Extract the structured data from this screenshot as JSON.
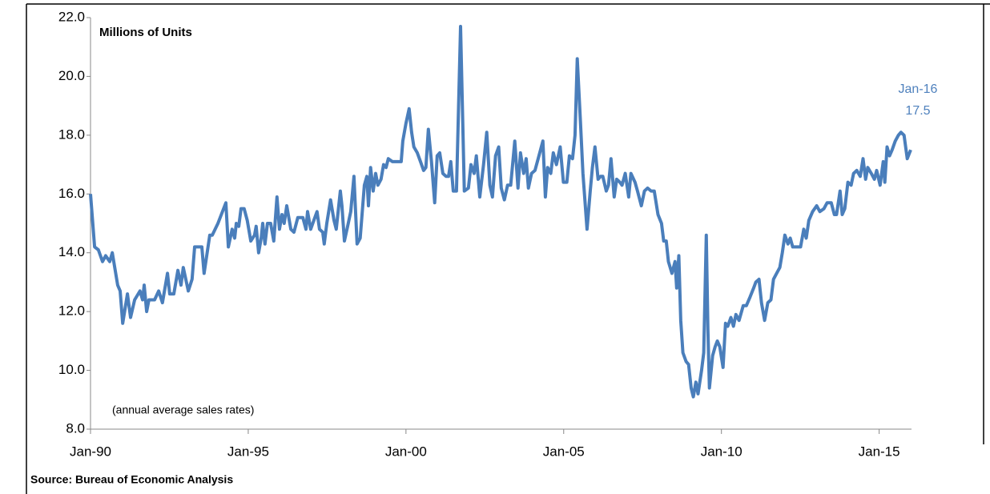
{
  "chart_data": {
    "type": "line",
    "axis_title": "Millions of Units",
    "note": "(annual average sales rates)",
    "source": "Source: Bureau of Economic Analysis",
    "annotations": [
      "Jan-16",
      "17.5"
    ],
    "color": "#4a7ebb",
    "x": [
      1990.0,
      1990.13,
      1990.25,
      1990.38,
      1990.48,
      1990.61,
      1990.69,
      1990.86,
      1990.94,
      1991.02,
      1991.17,
      1991.27,
      1991.4,
      1991.57,
      1991.65,
      1991.7,
      1991.78,
      1991.85,
      1992.03,
      1992.16,
      1992.28,
      1992.44,
      1992.51,
      1992.64,
      1992.77,
      1992.87,
      1992.94,
      1993.1,
      1993.22,
      1993.3,
      1993.53,
      1993.6,
      1993.78,
      1993.86,
      1994.04,
      1994.11,
      1994.29,
      1994.37,
      1994.49,
      1994.57,
      1994.62,
      1994.7,
      1994.77,
      1994.87,
      1994.97,
      1995.08,
      1995.2,
      1995.25,
      1995.33,
      1995.41,
      1995.46,
      1995.53,
      1995.61,
      1995.71,
      1995.81,
      1995.91,
      1995.99,
      1996.07,
      1996.14,
      1996.22,
      1996.35,
      1996.45,
      1996.57,
      1996.73,
      1996.83,
      1996.88,
      1996.98,
      1997.08,
      1997.18,
      1997.26,
      1997.36,
      1997.41,
      1997.49,
      1997.61,
      1997.72,
      1997.79,
      1997.92,
      1997.97,
      1998.05,
      1998.15,
      1998.25,
      1998.35,
      1998.45,
      1998.55,
      1998.68,
      1998.76,
      1998.81,
      1998.88,
      1998.96,
      1999.04,
      1999.11,
      1999.21,
      1999.29,
      1999.37,
      1999.44,
      1999.57,
      1999.72,
      1999.85,
      1999.9,
      2000.0,
      2000.1,
      2000.18,
      2000.25,
      2000.36,
      2000.46,
      2000.56,
      2000.63,
      2000.71,
      2000.81,
      2000.91,
      2000.99,
      2001.07,
      2001.17,
      2001.27,
      2001.35,
      2001.42,
      2001.5,
      2001.6,
      2001.73,
      2001.85,
      2001.98,
      2002.06,
      2002.16,
      2002.23,
      2002.34,
      2002.46,
      2002.56,
      2002.66,
      2002.74,
      2002.84,
      2002.94,
      2003.02,
      2003.12,
      2003.22,
      2003.32,
      2003.45,
      2003.55,
      2003.63,
      2003.73,
      2003.81,
      2003.88,
      2003.98,
      2004.09,
      2004.19,
      2004.34,
      2004.42,
      2004.49,
      2004.59,
      2004.67,
      2004.77,
      2004.89,
      2004.99,
      2005.1,
      2005.18,
      2005.28,
      2005.36,
      2005.43,
      2005.53,
      2005.61,
      2005.74,
      2005.84,
      2005.91,
      2005.99,
      2006.09,
      2006.17,
      2006.24,
      2006.35,
      2006.42,
      2006.5,
      2006.6,
      2006.68,
      2006.78,
      2006.85,
      2006.95,
      2007.06,
      2007.13,
      2007.26,
      2007.34,
      2007.46,
      2007.56,
      2007.66,
      2007.77,
      2007.87,
      2007.99,
      2008.1,
      2008.17,
      2008.25,
      2008.32,
      2008.43,
      2008.53,
      2008.58,
      2008.65,
      2008.71,
      2008.78,
      2008.88,
      2008.96,
      2009.04,
      2009.11,
      2009.19,
      2009.26,
      2009.37,
      2009.44,
      2009.52,
      2009.57,
      2009.62,
      2009.72,
      2009.8,
      2009.87,
      2009.95,
      2010.05,
      2010.13,
      2010.2,
      2010.3,
      2010.38,
      2010.46,
      2010.56,
      2010.69,
      2010.79,
      2010.91,
      2011.02,
      2011.09,
      2011.19,
      2011.27,
      2011.37,
      2011.47,
      2011.57,
      2011.65,
      2011.75,
      2011.85,
      2011.93,
      2012.01,
      2012.11,
      2012.18,
      2012.26,
      2012.39,
      2012.51,
      2012.61,
      2012.69,
      2012.77,
      2012.89,
      2013.02,
      2013.12,
      2013.25,
      2013.35,
      2013.48,
      2013.58,
      2013.65,
      2013.76,
      2013.83,
      2013.91,
      2014.01,
      2014.11,
      2014.19,
      2014.29,
      2014.4,
      2014.49,
      2014.57,
      2014.64,
      2014.75,
      2014.85,
      2014.92,
      2015.03,
      2015.13,
      2015.18,
      2015.25,
      2015.33,
      2015.41,
      2015.51,
      2015.61,
      2015.69,
      2015.79,
      2015.89,
      2016.0
    ],
    "values": [
      16.0,
      14.2,
      14.1,
      13.7,
      13.9,
      13.7,
      14.0,
      12.9,
      12.7,
      11.6,
      12.6,
      11.8,
      12.4,
      12.7,
      12.4,
      12.9,
      12.0,
      12.4,
      12.4,
      12.7,
      12.3,
      13.3,
      12.6,
      12.6,
      13.4,
      12.9,
      13.5,
      12.7,
      13.1,
      14.2,
      14.2,
      13.3,
      14.6,
      14.6,
      15.0,
      15.2,
      15.7,
      14.2,
      14.8,
      14.5,
      15.0,
      14.9,
      15.5,
      15.5,
      15.1,
      14.4,
      14.6,
      14.9,
      14.0,
      14.5,
      15.0,
      14.3,
      15.0,
      15.0,
      14.4,
      15.9,
      14.8,
      15.3,
      15.0,
      15.6,
      14.8,
      14.7,
      15.2,
      15.2,
      14.8,
      15.4,
      14.8,
      15.1,
      15.4,
      14.8,
      14.7,
      14.3,
      15.0,
      15.8,
      15.1,
      14.8,
      16.1,
      15.6,
      14.4,
      14.9,
      15.4,
      16.6,
      14.3,
      14.5,
      16.3,
      16.6,
      15.6,
      16.9,
      16.1,
      16.7,
      16.3,
      16.5,
      17.0,
      16.9,
      17.2,
      17.1,
      17.1,
      17.1,
      17.8,
      18.4,
      18.9,
      18.1,
      17.6,
      17.4,
      17.1,
      16.8,
      16.9,
      18.2,
      17.1,
      15.7,
      17.3,
      17.4,
      16.7,
      16.6,
      16.6,
      17.1,
      16.1,
      16.1,
      21.7,
      16.1,
      16.2,
      17.0,
      16.7,
      17.3,
      15.9,
      17.0,
      18.1,
      16.3,
      15.9,
      17.3,
      17.6,
      16.2,
      15.8,
      16.3,
      16.3,
      17.8,
      16.2,
      17.4,
      16.7,
      17.2,
      16.2,
      16.7,
      16.8,
      17.2,
      17.8,
      15.9,
      16.9,
      16.7,
      17.4,
      17.0,
      17.6,
      16.4,
      16.4,
      17.3,
      17.2,
      18.0,
      20.6,
      18.5,
      16.7,
      14.8,
      16.1,
      16.9,
      17.6,
      16.5,
      16.6,
      16.6,
      16.1,
      16.3,
      17.2,
      15.9,
      16.5,
      16.4,
      16.3,
      16.7,
      15.9,
      16.7,
      16.4,
      16.1,
      15.6,
      16.1,
      16.2,
      16.1,
      16.1,
      15.3,
      15.0,
      14.4,
      14.4,
      13.7,
      13.3,
      13.7,
      12.8,
      13.9,
      11.7,
      10.6,
      10.3,
      10.2,
      9.4,
      9.1,
      9.6,
      9.2,
      10.0,
      10.6,
      14.6,
      11.4,
      9.4,
      10.5,
      10.8,
      11.0,
      10.8,
      10.1,
      11.6,
      11.5,
      11.8,
      11.5,
      11.9,
      11.7,
      12.2,
      12.2,
      12.5,
      12.8,
      13.0,
      13.1,
      12.3,
      11.7,
      12.3,
      12.4,
      13.1,
      13.3,
      13.5,
      14.0,
      14.6,
      14.3,
      14.5,
      14.2,
      14.2,
      14.2,
      14.8,
      14.5,
      15.1,
      15.4,
      15.6,
      15.4,
      15.5,
      15.7,
      15.7,
      15.3,
      15.3,
      16.1,
      15.3,
      15.5,
      16.4,
      16.3,
      16.7,
      16.8,
      16.6,
      17.2,
      16.5,
      16.9,
      16.7,
      16.5,
      16.8,
      16.3,
      17.1,
      16.4,
      17.6,
      17.3,
      17.5,
      17.8,
      18.0,
      18.1,
      18.0,
      17.2,
      17.5
    ],
    "xlim": [
      1990,
      2016
    ],
    "xticks": [
      {
        "value": 1990,
        "label": "Jan-90"
      },
      {
        "value": 1995,
        "label": "Jan-95"
      },
      {
        "value": 2000,
        "label": "Jan-00"
      },
      {
        "value": 2005,
        "label": "Jan-05"
      },
      {
        "value": 2010,
        "label": "Jan-10"
      },
      {
        "value": 2015,
        "label": "Jan-15"
      }
    ],
    "ylim": [
      8,
      22
    ],
    "yticks": [
      {
        "value": 8,
        "label": "8.0"
      },
      {
        "value": 10,
        "label": "10.0"
      },
      {
        "value": 12,
        "label": "12.0"
      },
      {
        "value": 14,
        "label": "14.0"
      },
      {
        "value": 16,
        "label": "16.0"
      },
      {
        "value": 18,
        "label": "18.0"
      },
      {
        "value": 20,
        "label": "20.0"
      },
      {
        "value": 22,
        "label": "22.0"
      }
    ]
  }
}
